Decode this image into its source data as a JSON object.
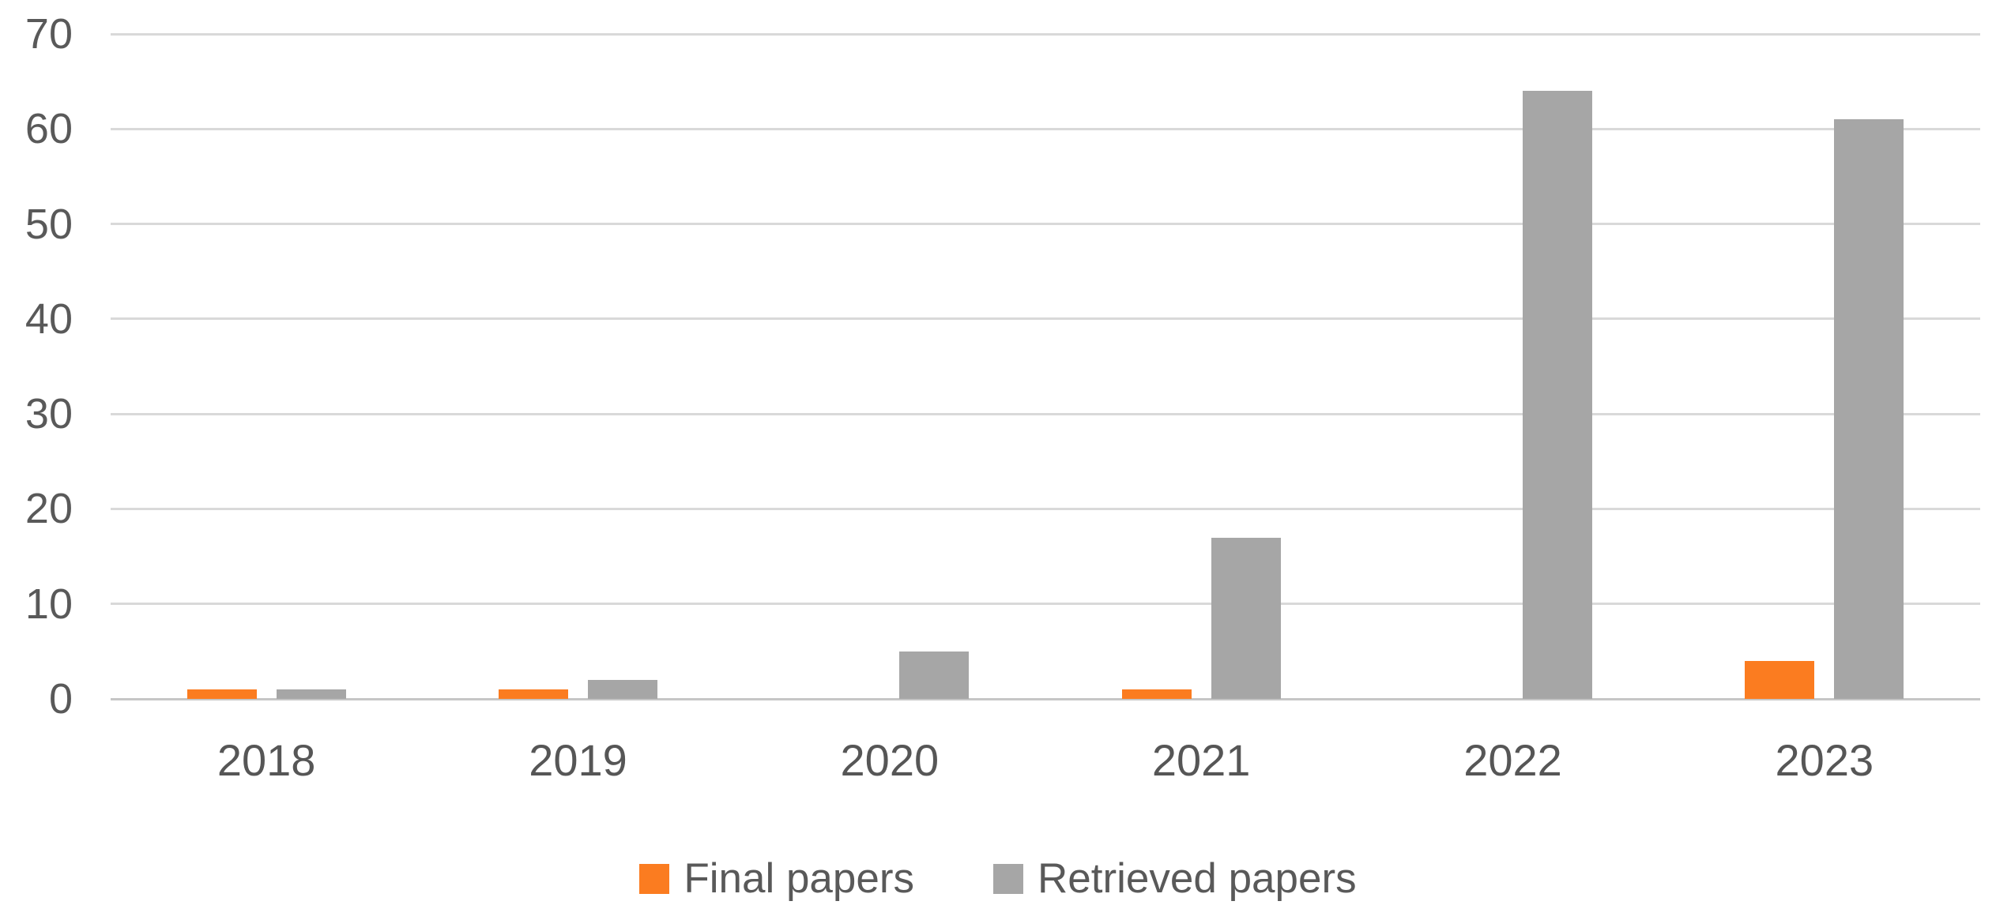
{
  "chart_data": {
    "type": "bar",
    "title": "",
    "xlabel": "",
    "ylabel": "",
    "categories": [
      "2018",
      "2019",
      "2020",
      "2021",
      "2022",
      "2023"
    ],
    "series": [
      {
        "name": "Final papers",
        "values": [
          1,
          1,
          0,
          1,
          0,
          4
        ],
        "color": "#FB7C20"
      },
      {
        "name": "Retrieved papers",
        "values": [
          1,
          2,
          5,
          17,
          64,
          61
        ],
        "color": "#A6A6A6"
      }
    ],
    "ylim": [
      0,
      70
    ],
    "yticks": [
      0,
      10,
      20,
      30,
      40,
      50,
      60,
      70
    ],
    "grid": true,
    "legend_position": "bottom"
  },
  "colors": {
    "gridline": "#D9D9D9",
    "baseline": "#C6C6C6",
    "axis_text": "#595959",
    "background": "#FFFFFF"
  }
}
